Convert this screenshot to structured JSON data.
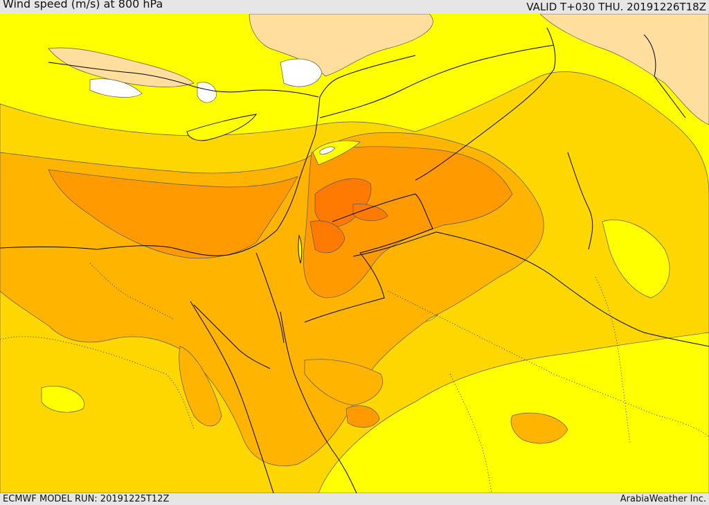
{
  "header": {
    "title": "Wind speed (m/s) at 800 hPa",
    "valid_time": "VALID T+030 THU. 20191226T18Z"
  },
  "footer": {
    "model_run": "ECMWF MODEL RUN: 20191225T12Z",
    "credit": "ArabiaWeather Inc."
  },
  "colors": {
    "band_low": "#ffde9e",
    "band_1": "#ffff00",
    "band_2": "#ffd700",
    "band_3": "#ffb400",
    "band_4": "#ff9a00",
    "band_5": "#ff7a00",
    "missing": "#ffffff",
    "contour": "#333333",
    "border": "#000000"
  }
}
